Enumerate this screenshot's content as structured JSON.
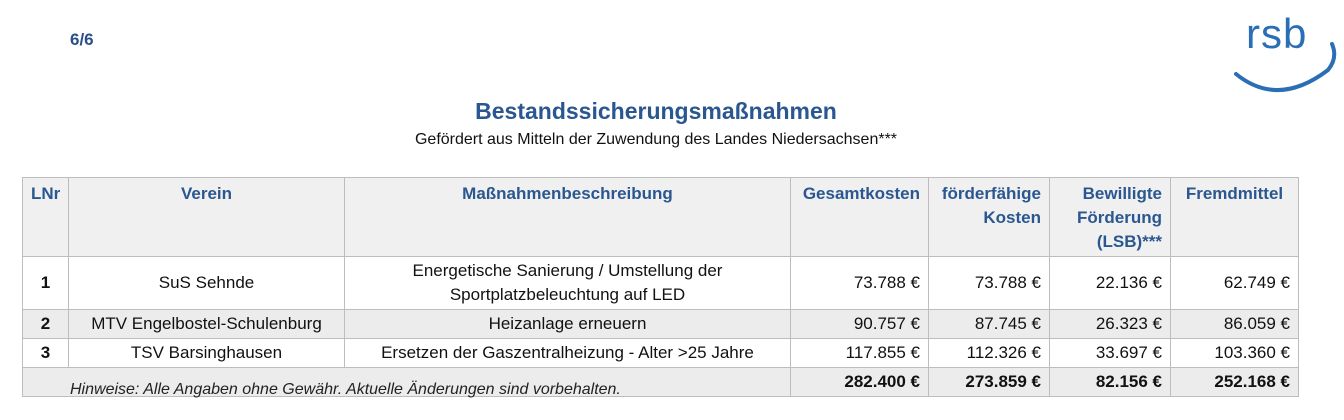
{
  "page": {
    "number": "6/6"
  },
  "logo": {
    "text": "rsb",
    "brand_color": "#2a6fb5"
  },
  "heading": {
    "title": "Bestandssicherungsmaßnahmen",
    "subtitle": "Gefördert aus Mitteln der Zuwendung des Landes Niedersachsen***"
  },
  "table": {
    "headers": {
      "lnr": "LNr",
      "verein": "Verein",
      "beschreibung": "Maßnahmenbeschreibung",
      "gesamt": "Gesamtkosten",
      "foerderfaehig": "förderfähige Kosten",
      "bewilligt": "Bewilligte Förderung (LSB)***",
      "fremd": "Fremdmittel"
    },
    "rows": [
      {
        "lnr": "1",
        "verein": "SuS Sehnde",
        "beschreibung": "Energetische Sanierung / Umstellung der Sportplatzbeleuchtung auf LED",
        "gesamt": "73.788 €",
        "foerderfaehig": "73.788 €",
        "bewilligt": "22.136 €",
        "fremd": "62.749 €"
      },
      {
        "lnr": "2",
        "verein": "MTV Engelbostel-Schulenburg",
        "beschreibung": "Heizanlage erneuern",
        "gesamt": "90.757 €",
        "foerderfaehig": "87.745 €",
        "bewilligt": "26.323 €",
        "fremd": "86.059 €"
      },
      {
        "lnr": "3",
        "verein": "TSV Barsinghausen",
        "beschreibung": "Ersetzen der Gaszentralheizung - Alter >25 Jahre",
        "gesamt": "117.855 €",
        "foerderfaehig": "112.326 €",
        "bewilligt": "33.697 €",
        "fremd": "103.360 €"
      }
    ],
    "totals": {
      "gesamt": "282.400 €",
      "foerderfaehig": "273.859 €",
      "bewilligt": "82.156 €",
      "fremd": "252.168 €"
    }
  },
  "footer": {
    "note": "Hinweise: Alle Angaben ohne Gewähr. Aktuelle Änderungen sind vorbehalten."
  }
}
